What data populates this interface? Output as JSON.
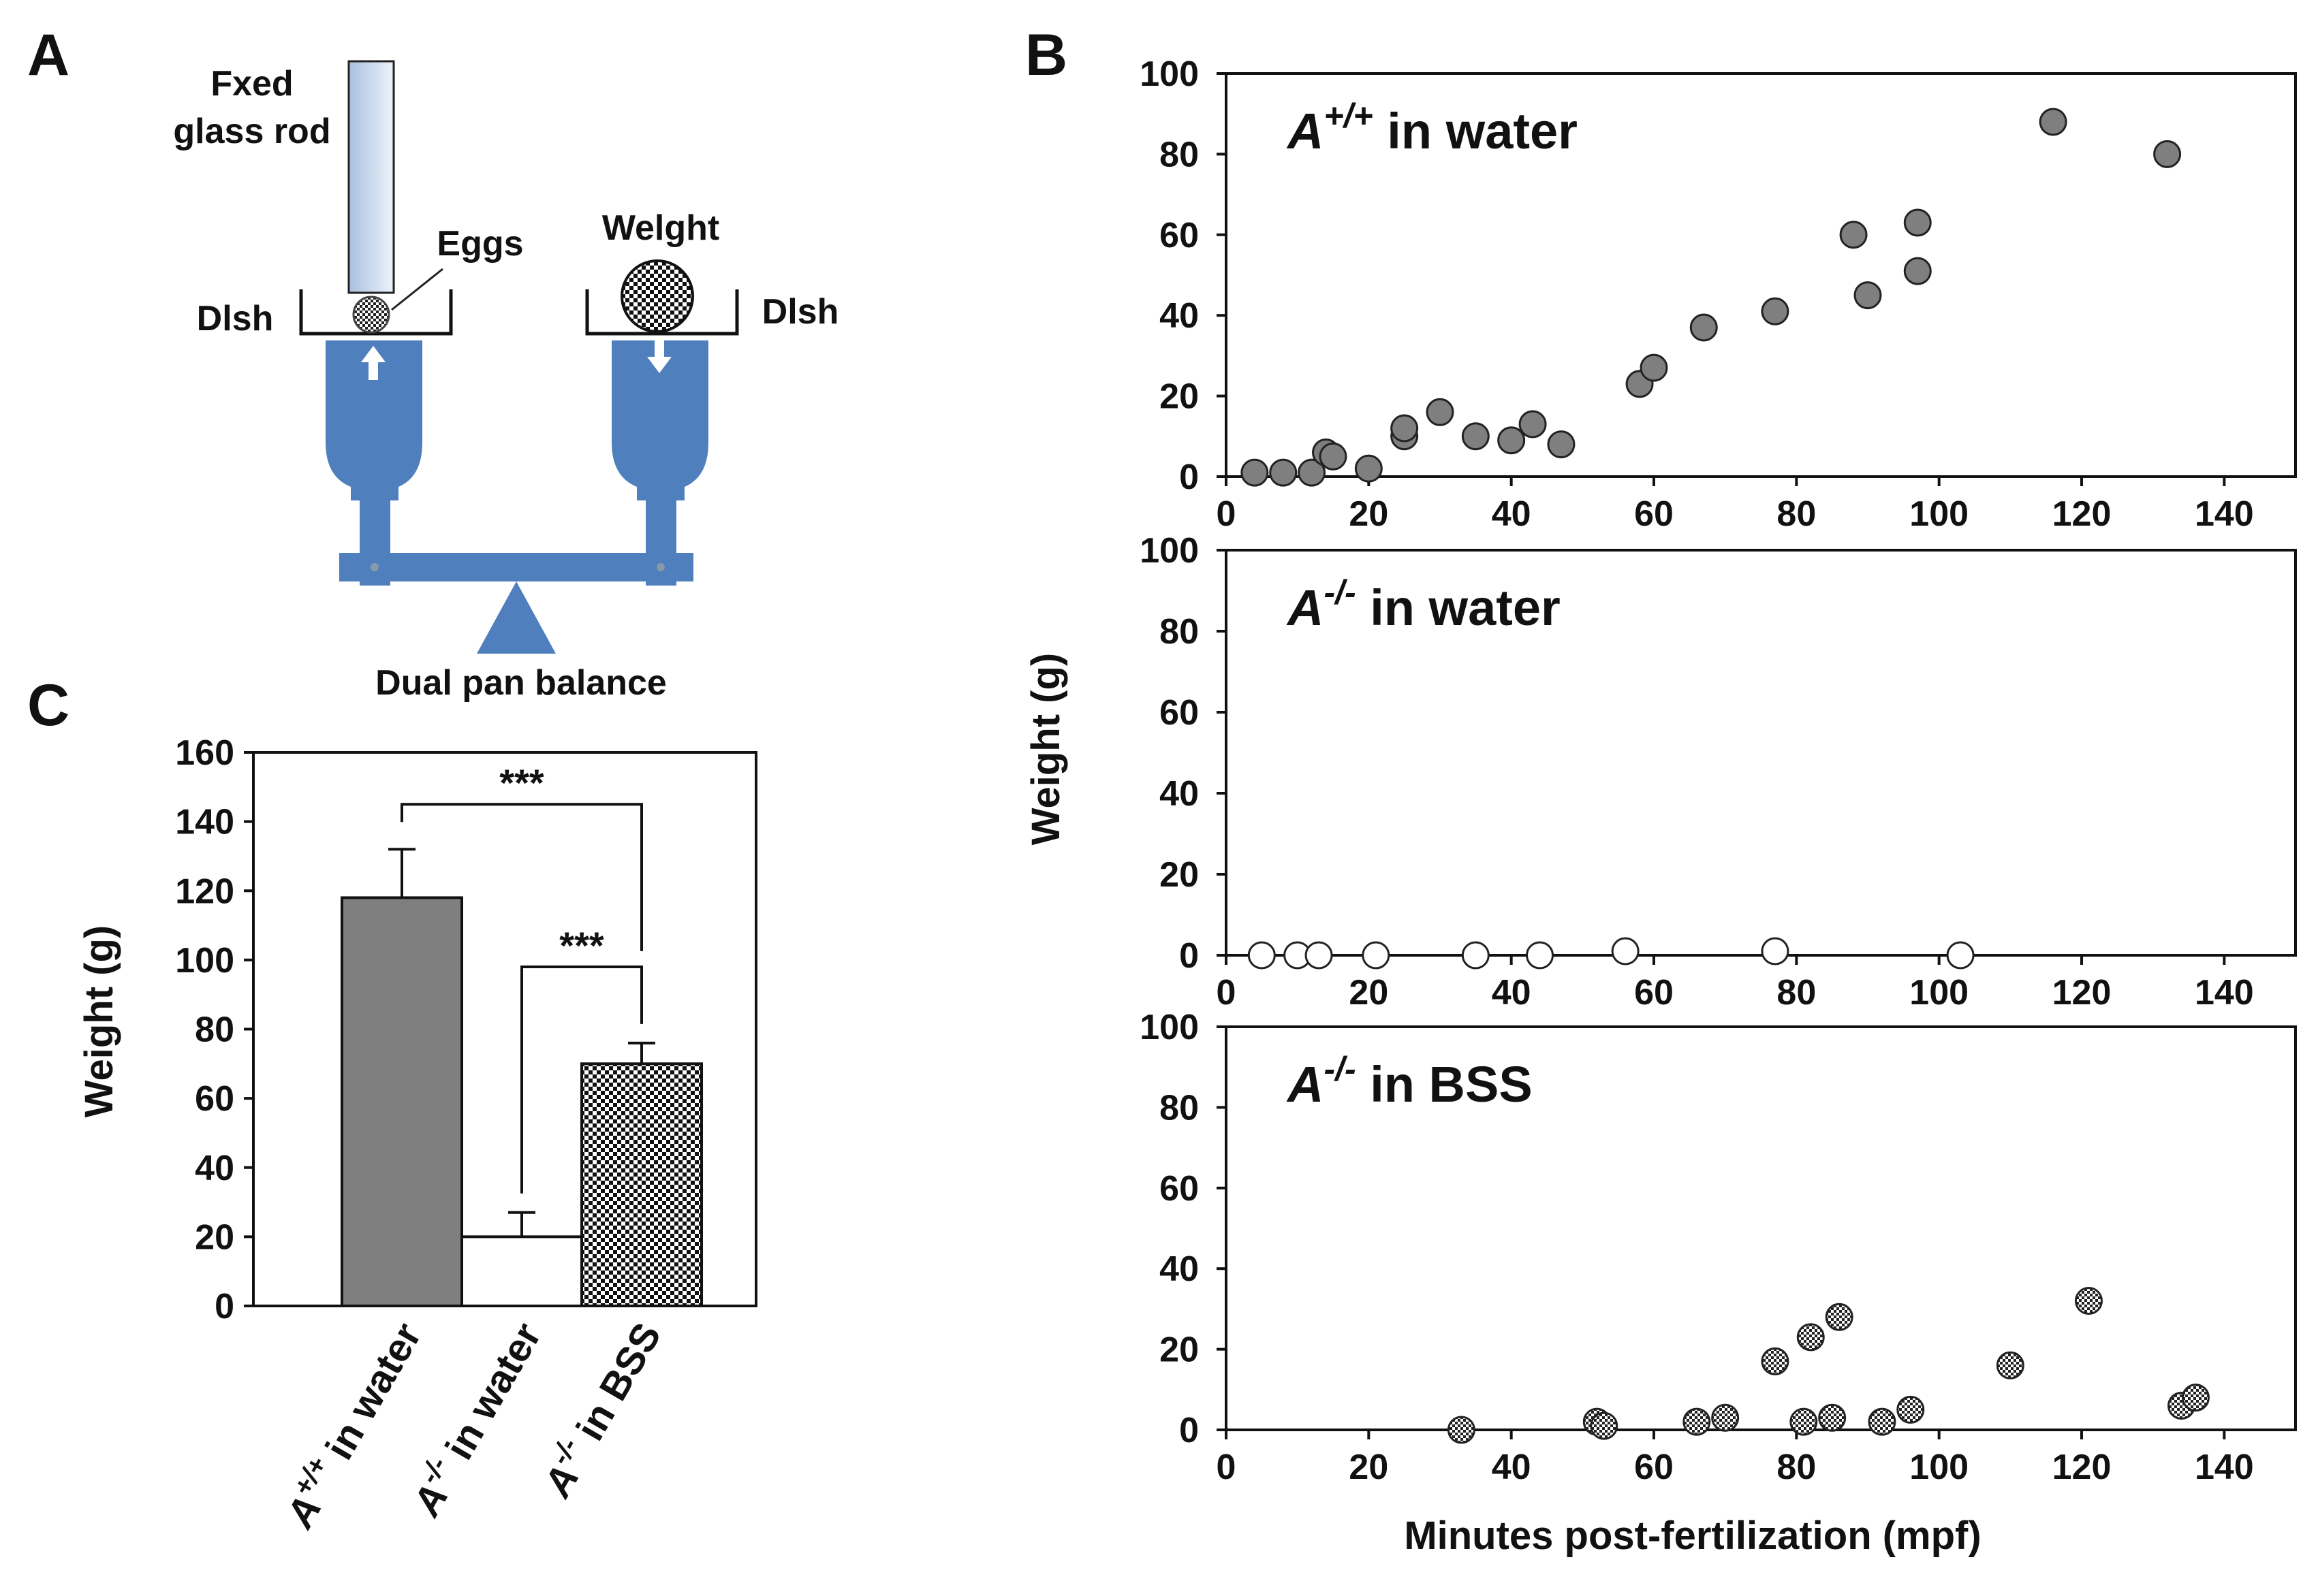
{
  "panel_labels": {
    "a": "A",
    "b": "B",
    "c": "C"
  },
  "apparatus": {
    "rod_label_line1": "Fxed",
    "rod_label_line2": "glass rod",
    "eggs_label": "Eggs",
    "weight_label": "Welght",
    "dish_left_label": "Dlsh",
    "dish_right_label": "Dlsh",
    "balance_label": "Dual pan balance",
    "colors": {
      "balance": "#4f7fbd",
      "rod_top": "#eef3fa",
      "rod_bottom": "#a9c0df"
    }
  },
  "chart_data": [
    {
      "id": "C",
      "type": "bar",
      "ylabel": "Weight  (g)",
      "ylim": [
        0,
        160
      ],
      "yticks": [
        "0",
        "20",
        "40",
        "60",
        "80",
        "100",
        "120",
        "140",
        "160"
      ],
      "categories": [
        {
          "prefix": "A",
          "sup": "+/+",
          "suffix": " in water"
        },
        {
          "prefix": "A",
          "sup": "-/-",
          "suffix": " in water"
        },
        {
          "prefix": "A",
          "sup": "-/-",
          "suffix": " in BSS"
        }
      ],
      "values": [
        118,
        20,
        70
      ],
      "errors": [
        14,
        7,
        6
      ],
      "fills": [
        "#7f7f7f",
        "#ffffff",
        "checker"
      ],
      "significance": [
        {
          "from": 0,
          "to": 2,
          "label": "***"
        },
        {
          "from": 1,
          "to": 2,
          "label": "***"
        }
      ]
    },
    {
      "id": "B",
      "type": "scatter",
      "ylabel": "Weight  (g)",
      "xlabel": "Minutes post-fertilization (mpf)",
      "xlim": [
        0,
        150
      ],
      "ylim": [
        0,
        100
      ],
      "xticks": [
        "0",
        "20",
        "40",
        "60",
        "80",
        "100",
        "120",
        "140"
      ],
      "yticks": [
        "0",
        "20",
        "40",
        "60",
        "80",
        "100"
      ],
      "panels": [
        {
          "title_prefix": "A",
          "title_sup": "+/+",
          "title_suffix": " in water",
          "marker": "gray",
          "points": [
            [
              4,
              1
            ],
            [
              8,
              1
            ],
            [
              12,
              1
            ],
            [
              14,
              6
            ],
            [
              15,
              5
            ],
            [
              20,
              2
            ],
            [
              25,
              10
            ],
            [
              25,
              12
            ],
            [
              30,
              16
            ],
            [
              35,
              10
            ],
            [
              40,
              9
            ],
            [
              43,
              13
            ],
            [
              47,
              8
            ],
            [
              58,
              23
            ],
            [
              60,
              27
            ],
            [
              67,
              37
            ],
            [
              77,
              41
            ],
            [
              88,
              60
            ],
            [
              90,
              45
            ],
            [
              97,
              51
            ],
            [
              97,
              63
            ],
            [
              116,
              88
            ],
            [
              132,
              80
            ]
          ]
        },
        {
          "title_prefix": "A",
          "title_sup": "-/-",
          "title_suffix": " in water",
          "marker": "white",
          "points": [
            [
              5,
              0
            ],
            [
              10,
              0
            ],
            [
              13,
              0
            ],
            [
              21,
              0
            ],
            [
              35,
              0
            ],
            [
              44,
              0
            ],
            [
              56,
              1
            ],
            [
              77,
              1
            ],
            [
              103,
              0
            ]
          ]
        },
        {
          "title_prefix": "A",
          "title_sup": "-/-",
          "title_suffix": " in BSS",
          "marker": "checker",
          "points": [
            [
              33,
              0
            ],
            [
              52,
              2
            ],
            [
              53,
              1
            ],
            [
              66,
              2
            ],
            [
              70,
              3
            ],
            [
              77,
              17
            ],
            [
              81,
              2
            ],
            [
              82,
              23
            ],
            [
              85,
              3
            ],
            [
              86,
              28
            ],
            [
              92,
              2
            ],
            [
              96,
              5
            ],
            [
              110,
              16
            ],
            [
              121,
              32
            ],
            [
              134,
              6
            ],
            [
              136,
              8
            ]
          ]
        }
      ]
    }
  ]
}
